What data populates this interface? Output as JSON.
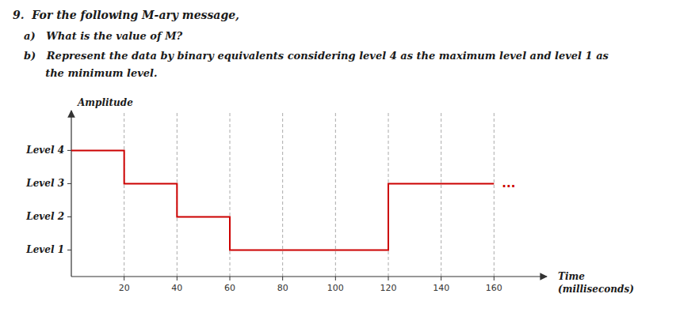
{
  "chart_data": {
    "type": "line",
    "title": "9.  For the following M-ary message,",
    "subtitle": [
      "a)   What is the value of M?",
      "b)   Represent the data by binary equivalents considering level 4 as the maximum level and level 1 as",
      "      the minimum level."
    ],
    "xlabel": [
      "Time",
      "(milliseconds)"
    ],
    "ylabel": "Amplitude",
    "x": [
      0,
      20,
      20,
      40,
      40,
      60,
      60,
      80,
      80,
      120,
      120,
      140,
      140,
      160
    ],
    "values": [
      4,
      4,
      3,
      3,
      2,
      2,
      1,
      1,
      1,
      1,
      3,
      3,
      3,
      3
    ],
    "color": "#cc0000",
    "xlim": [
      0,
      180
    ],
    "ylim": [
      0.2,
      5.2
    ],
    "xticks": [
      20,
      40,
      60,
      80,
      100,
      120,
      140,
      160
    ],
    "yticks": [
      {
        "value": 4,
        "label": "Level 4"
      },
      {
        "value": 3,
        "label": "Level 3"
      },
      {
        "value": 2,
        "label": "Level 2"
      },
      {
        "value": 1,
        "label": "Level 1"
      }
    ],
    "grid": "x",
    "annotations": [
      {
        "text": "...",
        "x": 163,
        "y": 3
      }
    ]
  }
}
